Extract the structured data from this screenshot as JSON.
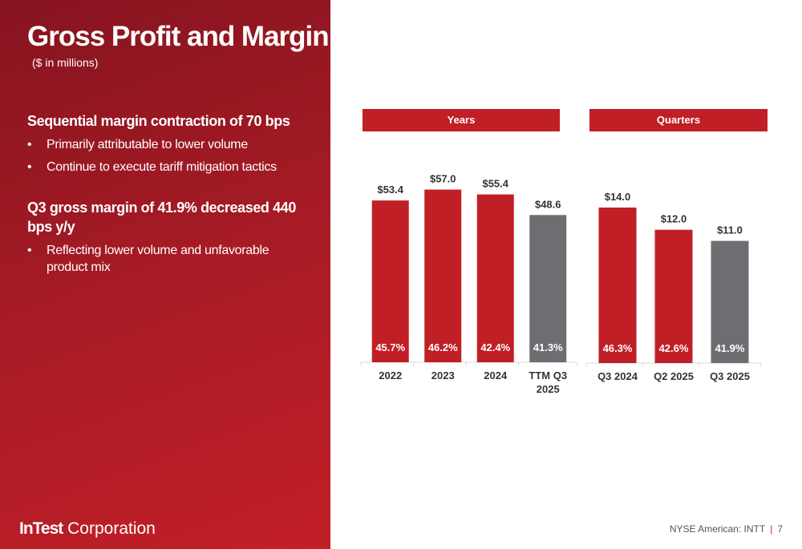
{
  "title": "Gross Profit and Margin",
  "subtitle": "($ in millions)",
  "sections": [
    {
      "heading": "Sequential margin contraction of 70 bps",
      "bullets": [
        "Primarily attributable to lower volume",
        "Continue to execute tariff mitigation tactics"
      ]
    },
    {
      "heading": "Q3 gross margin of 41.9% decreased 440 bps y/y",
      "bullets": [
        "Reflecting lower volume and unfavorable product mix"
      ]
    }
  ],
  "footer": {
    "logo_bold": "InTest",
    "logo_rest": " Corporation",
    "ticker": "NYSE American: INTT",
    "page": "7"
  },
  "colors": {
    "primary": "#c01f26",
    "highlight": "#6d6e71"
  },
  "chart_data": [
    {
      "type": "bar",
      "title": "Years",
      "categories": [
        "2022",
        "2023",
        "2024",
        "TTM Q3 2025"
      ],
      "values": [
        53.4,
        57.0,
        55.4,
        48.6
      ],
      "value_labels": [
        "$53.4",
        "$57.0",
        "$55.4",
        "$48.6"
      ],
      "margin_labels": [
        "45.7%",
        "46.2%",
        "42.4%",
        "41.3%"
      ],
      "bar_colors": [
        "#c01f26",
        "#c01f26",
        "#c01f26",
        "#6d6e71"
      ],
      "ylim": [
        0,
        60
      ]
    },
    {
      "type": "bar",
      "title": "Quarters",
      "categories": [
        "Q3 2024",
        "Q2 2025",
        "Q3 2025"
      ],
      "values": [
        14.0,
        12.0,
        11.0
      ],
      "value_labels": [
        "$14.0",
        "$12.0",
        "$11.0"
      ],
      "margin_labels": [
        "46.3%",
        "42.6%",
        "41.9%"
      ],
      "bar_colors": [
        "#c01f26",
        "#c01f26",
        "#6d6e71"
      ],
      "ylim": [
        0,
        15
      ]
    }
  ]
}
